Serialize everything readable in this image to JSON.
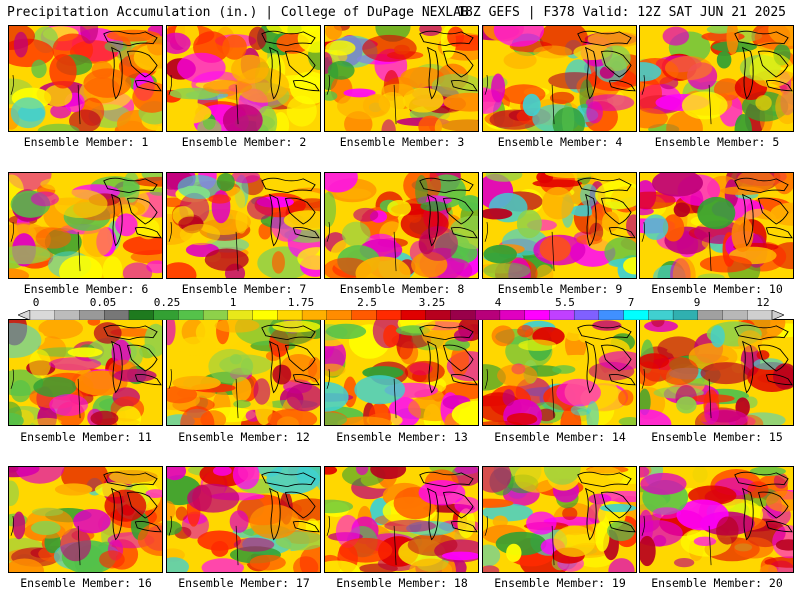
{
  "header": {
    "title": "Precipitation Accumulation (in.) | College of DuPage NEXLAB",
    "run_info": "18Z GEFS | F378 Valid: 12Z SAT JUN 21 2025"
  },
  "colorbar": {
    "tick_labels": [
      "0",
      "0.05",
      "0.25",
      "1",
      "1.75",
      "2.5",
      "3.25",
      "4",
      "5.5",
      "7",
      "9",
      "12"
    ],
    "colors": [
      "#d9d9d9",
      "#bcbcbc",
      "#999999",
      "#777777",
      "#1e7a1e",
      "#33a033",
      "#55c24a",
      "#8ed14a",
      "#e8e81a",
      "#ffff00",
      "#ffd700",
      "#ffb000",
      "#ff8c00",
      "#ff5a00",
      "#ff2a00",
      "#e00000",
      "#b8001e",
      "#99004a",
      "#b8007a",
      "#e000c0",
      "#ff00ff",
      "#c040ff",
      "#8060ff",
      "#4090ff",
      "#00ffff",
      "#40d0d0",
      "#30b0b0",
      "#a0a0a0",
      "#b8b8b8",
      "#cfcfcf"
    ]
  },
  "members": [
    {
      "label": "Ensemble Member: 1"
    },
    {
      "label": "Ensemble Member: 2"
    },
    {
      "label": "Ensemble Member: 3"
    },
    {
      "label": "Ensemble Member: 4"
    },
    {
      "label": "Ensemble Member: 5"
    },
    {
      "label": "Ensemble Member: 6"
    },
    {
      "label": "Ensemble Member: 7"
    },
    {
      "label": "Ensemble Member: 8"
    },
    {
      "label": "Ensemble Member: 9"
    },
    {
      "label": "Ensemble Member: 10"
    },
    {
      "label": "Ensemble Member: 11"
    },
    {
      "label": "Ensemble Member: 12"
    },
    {
      "label": "Ensemble Member: 13"
    },
    {
      "label": "Ensemble Member: 14"
    },
    {
      "label": "Ensemble Member: 15"
    },
    {
      "label": "Ensemble Member: 16"
    },
    {
      "label": "Ensemble Member: 17"
    },
    {
      "label": "Ensemble Member: 18"
    },
    {
      "label": "Ensemble Member: 19"
    },
    {
      "label": "Ensemble Member: 20"
    }
  ]
}
